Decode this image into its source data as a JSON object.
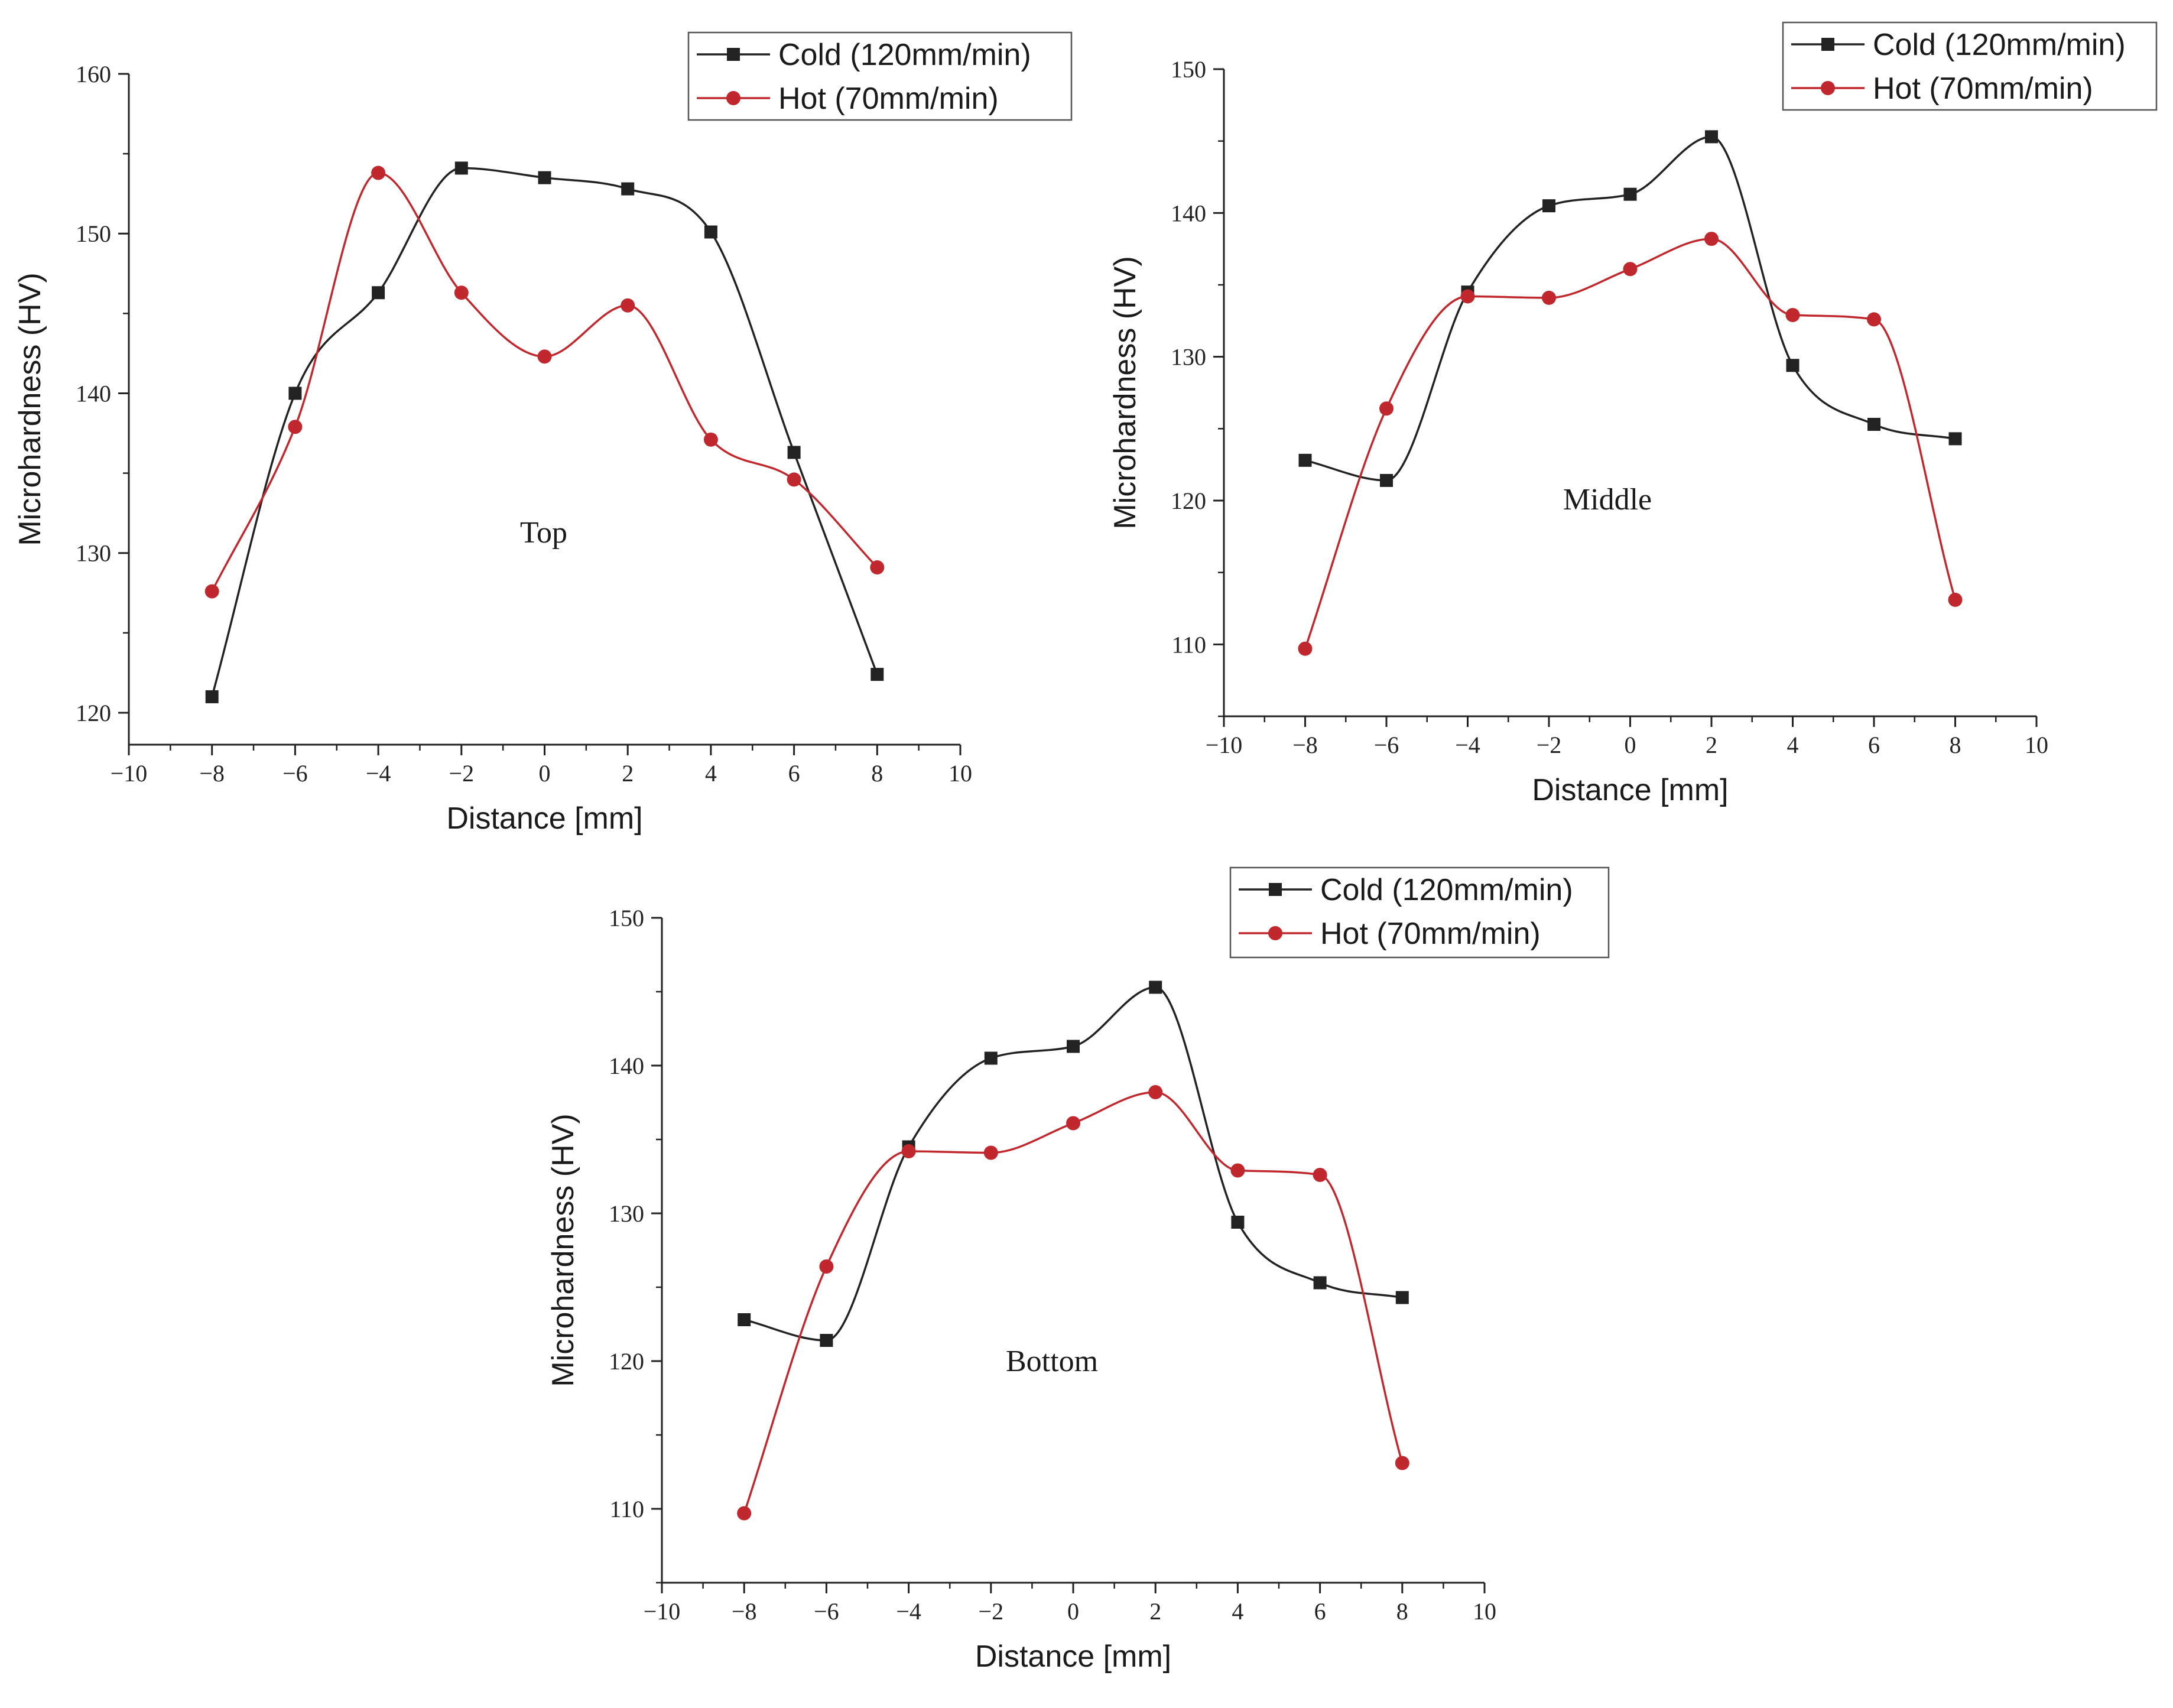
{
  "chart_data": [
    {
      "type": "line",
      "annotation": "Top",
      "xlabel": "Distance [mm]",
      "ylabel": "Microhardness (HV)",
      "xlim": [
        -10,
        10
      ],
      "ylim": [
        118,
        160
      ],
      "xticks": [
        -10,
        -8,
        -6,
        -4,
        -2,
        0,
        2,
        4,
        6,
        8,
        10
      ],
      "xtick_labels": [
        "−10",
        "−8",
        "−6",
        "−4",
        "−2",
        "0",
        "2",
        "4",
        "6",
        "8",
        "10"
      ],
      "yticks": [
        120,
        130,
        140,
        150,
        160
      ],
      "ytick_labels": [
        "120",
        "130",
        "140",
        "150",
        "160"
      ],
      "legend_position": "top-right",
      "series": [
        {
          "name": "Cold (120mm/min)",
          "color": "#222222",
          "marker": "square",
          "x": [
            -8,
            -6,
            -4,
            -2,
            0,
            2,
            4,
            6,
            8
          ],
          "y": [
            121.0,
            140.0,
            146.3,
            154.1,
            153.5,
            152.8,
            150.1,
            136.3,
            122.4
          ]
        },
        {
          "name": "Hot (70mm/min)",
          "color": "#c0282e",
          "marker": "circle",
          "x": [
            -8,
            -6,
            -4,
            -2,
            0,
            2,
            4,
            6,
            8
          ],
          "y": [
            127.6,
            137.9,
            153.8,
            146.3,
            142.3,
            145.5,
            137.1,
            134.6,
            129.1
          ]
        }
      ]
    },
    {
      "type": "line",
      "annotation": "Middle",
      "xlabel": "Distance [mm]",
      "ylabel": "Microhardness (HV)",
      "xlim": [
        -10,
        10
      ],
      "ylim": [
        105,
        150
      ],
      "xticks": [
        -10,
        -8,
        -6,
        -4,
        -2,
        0,
        2,
        4,
        6,
        8,
        10
      ],
      "xtick_labels": [
        "−10",
        "−8",
        "−6",
        "−4",
        "−2",
        "0",
        "2",
        "4",
        "6",
        "8",
        "10"
      ],
      "yticks": [
        110,
        120,
        130,
        140,
        150
      ],
      "ytick_labels": [
        "110",
        "120",
        "130",
        "140",
        "150"
      ],
      "legend_position": "top-right",
      "series": [
        {
          "name": "Cold (120mm/min)",
          "color": "#222222",
          "marker": "square",
          "x": [
            -8,
            -6,
            -4,
            -2,
            0,
            2,
            4,
            6,
            8
          ],
          "y": [
            122.8,
            121.4,
            134.5,
            140.5,
            141.3,
            145.3,
            129.4,
            125.3,
            124.3
          ]
        },
        {
          "name": "Hot (70mm/min)",
          "color": "#c0282e",
          "marker": "circle",
          "x": [
            -8,
            -6,
            -4,
            -2,
            0,
            2,
            4,
            6,
            8
          ],
          "y": [
            109.7,
            126.4,
            134.2,
            134.1,
            136.1,
            138.2,
            132.9,
            132.6,
            113.1
          ]
        }
      ]
    },
    {
      "type": "line",
      "annotation": "Bottom",
      "xlabel": "Distance [mm]",
      "ylabel": "Microhardness (HV)",
      "xlim": [
        -10,
        10
      ],
      "ylim": [
        105,
        150
      ],
      "xticks": [
        -10,
        -8,
        -6,
        -4,
        -2,
        0,
        2,
        4,
        6,
        8,
        10
      ],
      "xtick_labels": [
        "−10",
        "−8",
        "−6",
        "−4",
        "−2",
        "0",
        "2",
        "4",
        "6",
        "8",
        "10"
      ],
      "yticks": [
        110,
        120,
        130,
        140,
        150
      ],
      "ytick_labels": [
        "110",
        "120",
        "130",
        "140",
        "150"
      ],
      "legend_position": "top-right",
      "series": [
        {
          "name": "Cold (120mm/min)",
          "color": "#222222",
          "marker": "square",
          "x": [
            -8,
            -6,
            -4,
            -2,
            0,
            2,
            4,
            6,
            8
          ],
          "y": [
            122.8,
            121.4,
            134.5,
            140.5,
            141.3,
            145.3,
            129.4,
            125.3,
            124.3
          ]
        },
        {
          "name": "Hot (70mm/min)",
          "color": "#c0282e",
          "marker": "circle",
          "x": [
            -8,
            -6,
            -4,
            -2,
            0,
            2,
            4,
            6,
            8
          ],
          "y": [
            109.7,
            126.4,
            134.2,
            134.1,
            136.1,
            138.2,
            132.9,
            132.6,
            113.1
          ]
        }
      ]
    }
  ]
}
